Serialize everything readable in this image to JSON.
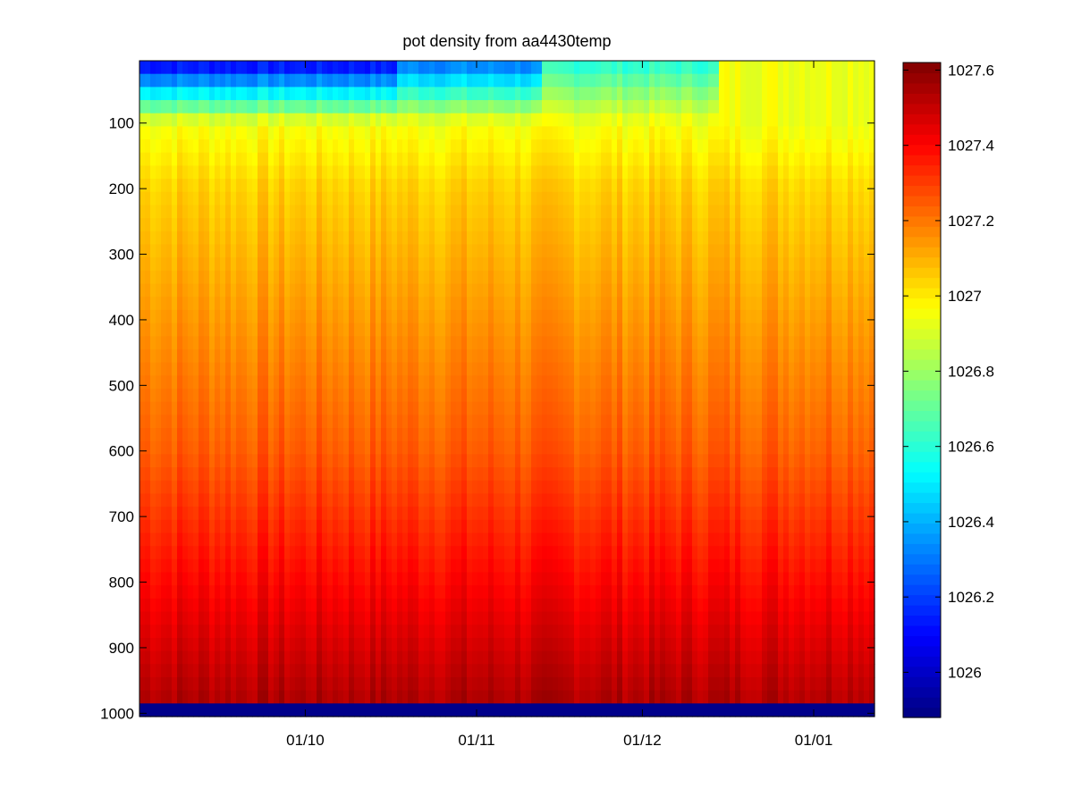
{
  "chart_data": {
    "type": "heatmap",
    "title": "pot density from aa4430temp",
    "xlabel": "",
    "ylabel": "",
    "x_axis": {
      "kind": "date",
      "range": [
        "2011-09-01",
        "2012-01-12"
      ],
      "ticks": [
        {
          "date": "2011-10-01",
          "label": "01/10"
        },
        {
          "date": "2011-11-01",
          "label": "01/11"
        },
        {
          "date": "2011-12-01",
          "label": "01/12"
        },
        {
          "date": "2012-01-01",
          "label": "01/01"
        }
      ]
    },
    "y_axis": {
      "reversed": true,
      "range": [
        5,
        1005
      ],
      "ticks": [
        100,
        200,
        300,
        400,
        500,
        600,
        700,
        800,
        900,
        1000
      ]
    },
    "colorbar": {
      "range": [
        1025.88,
        1027.62
      ],
      "ticks": [
        1026,
        1026.2,
        1026.4,
        1026.6,
        1026.8,
        1027,
        1027.2,
        1027.4,
        1027.6
      ],
      "tick_labels": [
        "1026",
        "1026.2",
        "1026.4",
        "1026.6",
        "1026.8",
        "1027",
        "1027.2",
        "1027.4",
        "1027.6"
      ],
      "colormap": "jet"
    },
    "field": {
      "description_levels": [
        {
          "depth": 10,
          "value_early": 1026.1,
          "value_oct_mid": 1026.3,
          "value_nov": 1026.6,
          "value_dec": 1026.95
        },
        {
          "depth": 100,
          "value": 1026.95
        },
        {
          "depth": 200,
          "value": 1027.05
        },
        {
          "depth": 400,
          "value": 1027.15
        },
        {
          "depth": 600,
          "value": 1027.25
        },
        {
          "depth": 800,
          "value": 1027.4
        },
        {
          "depth": 990,
          "value": 1027.55
        }
      ],
      "no_data_value": 1025.9
    }
  }
}
